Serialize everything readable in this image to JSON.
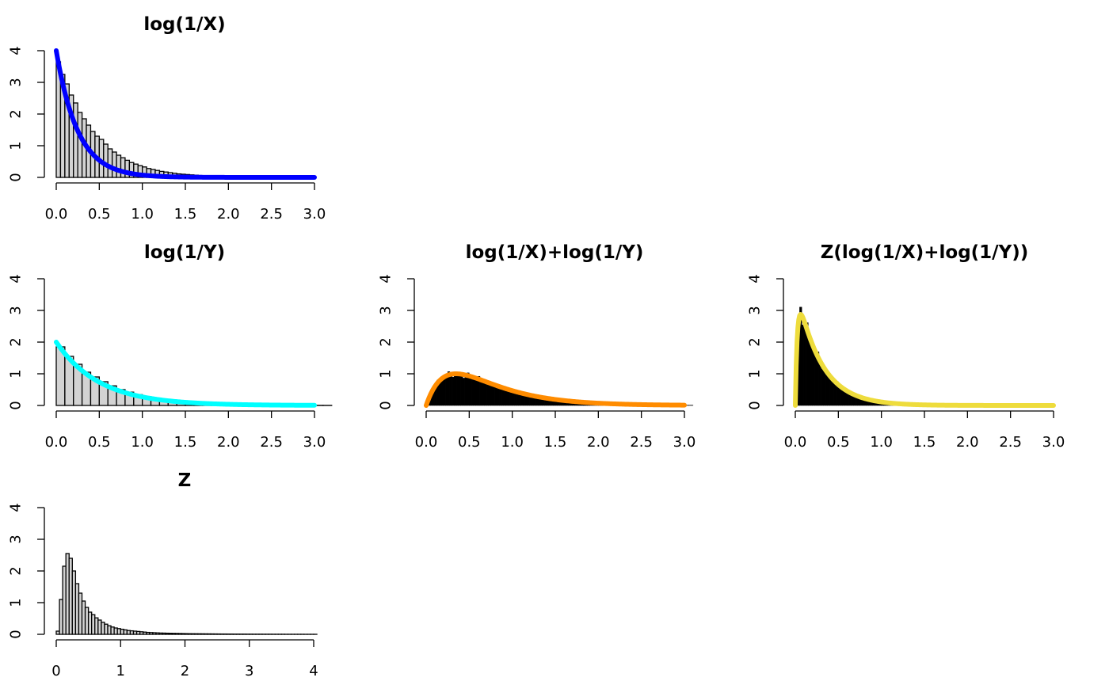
{
  "chart_data": [
    {
      "type": "bar",
      "title": "log(1/X)",
      "xlabel": "",
      "ylabel": "",
      "xlim": [
        0,
        3
      ],
      "ylim": [
        0,
        4
      ],
      "xticks": [
        "0.0",
        "0.5",
        "1.0",
        "1.5",
        "2.0",
        "2.5",
        "3.0"
      ],
      "yticks": [
        "0",
        "1",
        "2",
        "3",
        "4"
      ],
      "bin_width": 0.05,
      "bars_fill": "#d3d3d3",
      "bars": [
        3.65,
        3.25,
        2.95,
        2.6,
        2.35,
        2.05,
        1.85,
        1.65,
        1.45,
        1.3,
        1.2,
        1.05,
        0.9,
        0.8,
        0.7,
        0.62,
        0.54,
        0.47,
        0.42,
        0.37,
        0.33,
        0.28,
        0.25,
        0.22,
        0.19,
        0.17,
        0.15,
        0.13,
        0.11,
        0.1,
        0.09,
        0.08,
        0.07,
        0.06,
        0.05,
        0.045,
        0.04,
        0.035,
        0.03,
        0.025
      ],
      "curve": {
        "kind": "exp",
        "rate": 4,
        "color": "#0000ff"
      }
    },
    {
      "type": "bar",
      "title": "log(1/Y)",
      "xlabel": "",
      "ylabel": "",
      "xlim": [
        0,
        3
      ],
      "ylim": [
        0,
        4
      ],
      "xticks": [
        "0.0",
        "0.5",
        "1.0",
        "1.5",
        "2.0",
        "2.5",
        "3.0"
      ],
      "yticks": [
        "0",
        "1",
        "2",
        "3",
        "4"
      ],
      "bin_width": 0.1,
      "bars_fill": "#d3d3d3",
      "bars": [
        1.85,
        1.55,
        1.3,
        1.05,
        0.9,
        0.75,
        0.62,
        0.5,
        0.42,
        0.34,
        0.28,
        0.22,
        0.18,
        0.15,
        0.12,
        0.1,
        0.08,
        0.06,
        0.05,
        0.04,
        0.035,
        0.03,
        0.025,
        0.02,
        0.015,
        0.012,
        0.01,
        0.008,
        0.006,
        0.005,
        0.004,
        0.003
      ],
      "curve": {
        "kind": "exp",
        "rate": 2,
        "color": "#00ffff"
      }
    },
    {
      "type": "bar",
      "title": "log(1/X)+log(1/Y)",
      "xlabel": "",
      "ylabel": "",
      "xlim": [
        0,
        3
      ],
      "ylim": [
        0,
        4
      ],
      "xticks": [
        "0.0",
        "0.5",
        "1.0",
        "1.5",
        "2.0",
        "2.5",
        "3.0"
      ],
      "yticks": [
        "0",
        "1",
        "2",
        "3",
        "4"
      ],
      "bin_width": 0.025,
      "bars_fill": "#000000",
      "bars_from_curve": true,
      "curve": {
        "kind": "hypoexp",
        "rate_a": 4,
        "rate_b": 2,
        "color": "#ff8c00"
      }
    },
    {
      "type": "bar",
      "title": "Z(log(1/X)+log(1/Y))",
      "xlabel": "",
      "ylabel": "",
      "xlim": [
        0,
        3
      ],
      "ylim": [
        0,
        4
      ],
      "xticks": [
        "0.0",
        "0.5",
        "1.0",
        "1.5",
        "2.0",
        "2.5",
        "3.0"
      ],
      "yticks": [
        "0",
        "1",
        "2",
        "3",
        "4"
      ],
      "bin_width": 0.025,
      "bars_fill": "#000000",
      "bars_from_curve": true,
      "curve": {
        "kind": "transformed",
        "color": "#eedc3c"
      }
    },
    {
      "type": "bar",
      "title": "Z",
      "xlabel": "",
      "ylabel": "",
      "xlim": [
        0,
        4
      ],
      "ylim": [
        0,
        4
      ],
      "xticks": [
        "0",
        "1",
        "2",
        "3",
        "4"
      ],
      "yticks": [
        "0",
        "1",
        "2",
        "3",
        "4"
      ],
      "bin_width": 0.05,
      "bars_fill": "#d3d3d3",
      "bars": [
        0.1,
        1.1,
        2.15,
        2.55,
        2.4,
        2.0,
        1.6,
        1.3,
        1.05,
        0.85,
        0.7,
        0.62,
        0.52,
        0.45,
        0.38,
        0.32,
        0.27,
        0.23,
        0.2,
        0.18,
        0.16,
        0.14,
        0.12,
        0.11,
        0.1,
        0.09,
        0.08,
        0.07,
        0.06,
        0.055,
        0.05,
        0.045,
        0.04,
        0.038,
        0.035,
        0.032,
        0.03,
        0.028,
        0.026,
        0.024,
        0.022,
        0.02,
        0.019,
        0.018,
        0.017,
        0.016,
        0.015,
        0.014,
        0.013,
        0.012,
        0.011,
        0.01,
        0.01,
        0.009,
        0.009,
        0.008,
        0.008,
        0.007,
        0.007,
        0.006,
        0.006,
        0.005,
        0.005,
        0.005,
        0.004,
        0.004,
        0.004,
        0.003,
        0.003,
        0.003,
        0.003,
        0.002,
        0.002,
        0.002,
        0.002,
        0.002,
        0.002,
        0.001,
        0.001,
        0.001,
        0.001
      ],
      "curve": null
    }
  ]
}
